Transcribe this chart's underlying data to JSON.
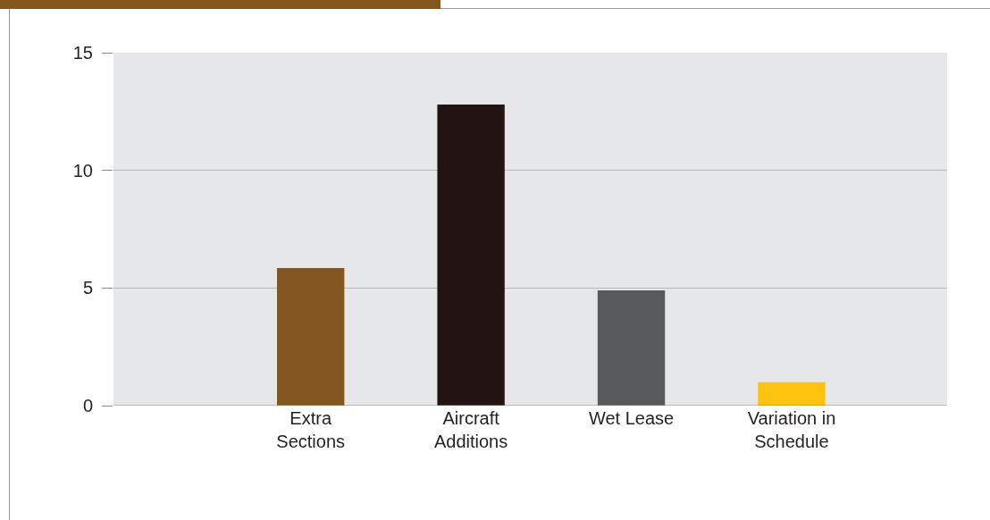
{
  "chart_data": {
    "type": "bar",
    "categories": [
      "Extra Sections",
      "Aircraft Additions",
      "Wet Lease",
      "Variation in Schedule"
    ],
    "values": [
      5.85,
      12.8,
      4.9,
      1.0
    ],
    "colors": [
      "#84561f",
      "#231414",
      "#58595b",
      "#fdc30f"
    ],
    "ylim": [
      0,
      15
    ],
    "yticks": [
      0,
      5,
      10,
      15
    ],
    "grid": "y",
    "legend": false
  }
}
